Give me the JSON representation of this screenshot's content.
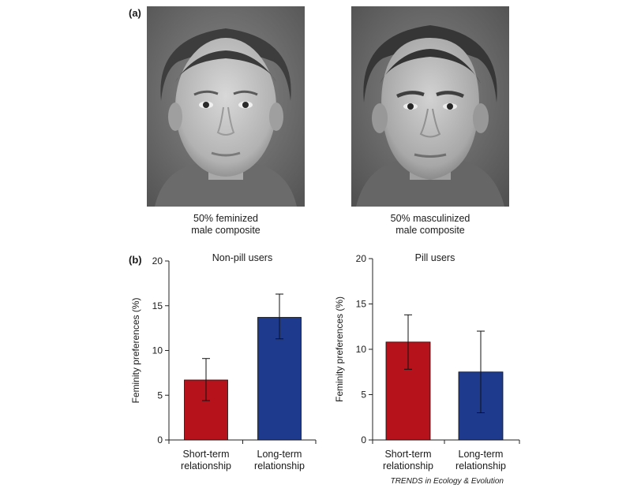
{
  "panel_a": {
    "label": "(a)",
    "faces": [
      {
        "caption_line1": "50% feminized",
        "caption_line2": "male composite"
      },
      {
        "caption_line1": "50% masculinized",
        "caption_line2": "male composite"
      }
    ]
  },
  "panel_b": {
    "label": "(b)"
  },
  "credit": "TRENDS in Ecology & Evolution",
  "colors": {
    "short_term": "#b5121b",
    "long_term": "#1d3a8c"
  },
  "chart_data": [
    {
      "type": "bar",
      "title": "Non-pill users",
      "ylabel": "Feminity preferences (%)",
      "xlabel": "",
      "ylim": [
        0,
        20
      ],
      "yticks": [
        0,
        5,
        10,
        15,
        20
      ],
      "categories": [
        [
          "Short-term",
          "relationship"
        ],
        [
          "Long-term",
          "relationship"
        ]
      ],
      "values": [
        6.7,
        13.7
      ],
      "errors": [
        {
          "low": 4.4,
          "high": 9.1
        },
        {
          "low": 11.3,
          "high": 16.3
        }
      ]
    },
    {
      "type": "bar",
      "title": "Pill users",
      "ylabel": "Feminity preferences (%)",
      "xlabel": "",
      "ylim": [
        0,
        20
      ],
      "yticks": [
        0,
        5,
        10,
        15,
        20
      ],
      "categories": [
        [
          "Short-term",
          "relationship"
        ],
        [
          "Long-term",
          "relationship"
        ]
      ],
      "values": [
        10.8,
        7.5
      ],
      "errors": [
        {
          "low": 7.8,
          "high": 13.8
        },
        {
          "low": 3.0,
          "high": 12.0
        }
      ]
    }
  ]
}
